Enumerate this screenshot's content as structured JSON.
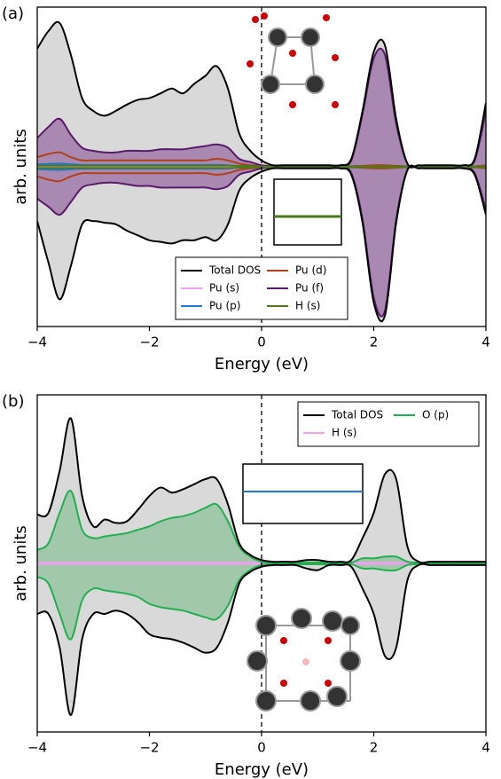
{
  "chart_data": [
    {
      "type": "dos",
      "panel_label": "(a)",
      "xlabel": "Energy (eV)",
      "ylabel": "arb. units",
      "xlim": [
        -4,
        4
      ],
      "ylim": [
        -1,
        1
      ],
      "xticks": [
        {
          "value": -4,
          "label": "−4"
        },
        {
          "value": -2,
          "label": "−2"
        },
        0,
        2,
        4
      ],
      "vline": 0,
      "legend": "lower center",
      "legend_columns": 2,
      "x": [
        -4,
        -3.8,
        -3.6,
        -3.4,
        -3.2,
        -3.0,
        -2.8,
        -2.6,
        -2.4,
        -2.2,
        -2.0,
        -1.8,
        -1.6,
        -1.4,
        -1.2,
        -1.0,
        -0.8,
        -0.6,
        -0.4,
        -0.2,
        0,
        0.2,
        0.4,
        0.6,
        0.8,
        1.0,
        1.2,
        1.4,
        1.6,
        1.8,
        2.0,
        2.2,
        2.4,
        2.6,
        2.8,
        3.0,
        3.2,
        3.4,
        3.6,
        3.8,
        4.0
      ],
      "series": [
        {
          "name": "Total DOS",
          "color": "#000000",
          "fill": "#d9d9d9",
          "values": [
            0.74,
            0.85,
            0.9,
            0.7,
            0.43,
            0.35,
            0.32,
            0.35,
            0.39,
            0.42,
            0.43,
            0.46,
            0.49,
            0.46,
            0.52,
            0.57,
            0.63,
            0.49,
            0.21,
            0.1,
            0.04,
            0.01,
            0.01,
            0.01,
            0.01,
            0.01,
            0.01,
            0.01,
            0.05,
            0.35,
            0.72,
            0.76,
            0.3,
            0.02,
            0.01,
            0.01,
            0.01,
            0.01,
            0.01,
            0.05,
            0.4
          ],
          "values_down": [
            -0.34,
            -0.6,
            -0.83,
            -0.62,
            -0.36,
            -0.34,
            -0.35,
            -0.36,
            -0.4,
            -0.43,
            -0.46,
            -0.47,
            -0.48,
            -0.46,
            -0.46,
            -0.44,
            -0.46,
            -0.36,
            -0.15,
            -0.07,
            -0.03,
            -0.01,
            -0.01,
            -0.01,
            -0.01,
            -0.01,
            -0.01,
            -0.01,
            -0.05,
            -0.35,
            -0.85,
            -0.93,
            -0.35,
            -0.02,
            -0.01,
            -0.01,
            -0.01,
            -0.01,
            -0.01,
            -0.05,
            -0.3
          ]
        },
        {
          "name": "Pu (s)",
          "color": "#f0a0ee",
          "values": [
            0.01,
            0.01,
            0.01,
            0.01,
            0.01,
            0.01,
            0.01,
            0.01,
            0.01,
            0.01,
            0.01,
            0.01,
            0.01,
            0.01,
            0.01,
            0.01,
            0.01,
            0.01,
            0.01,
            0.005,
            0.002,
            0.002,
            0.002,
            0.002,
            0.002,
            0.002,
            0.002,
            0.002,
            0.002,
            0.002,
            0.002,
            0.002,
            0.002,
            0.002,
            0.002,
            0.002,
            0.002,
            0.002,
            0.002,
            0.002,
            0.002
          ],
          "values_down": [
            -0.01,
            -0.01,
            -0.01,
            -0.01,
            -0.01,
            -0.01,
            -0.01,
            -0.01,
            -0.01,
            -0.01,
            -0.01,
            -0.01,
            -0.01,
            -0.01,
            -0.01,
            -0.01,
            -0.01,
            -0.01,
            -0.01,
            -0.005,
            -0.002,
            -0.002,
            -0.002,
            -0.002,
            -0.002,
            -0.002,
            -0.002,
            -0.002,
            -0.002,
            -0.002,
            -0.002,
            -0.002,
            -0.002,
            -0.002,
            -0.002,
            -0.002,
            -0.002,
            -0.002,
            -0.002,
            -0.002,
            -0.002
          ]
        },
        {
          "name": "Pu (p)",
          "color": "#1f78d0",
          "values": [
            0.015,
            0.018,
            0.02,
            0.016,
            0.012,
            0.012,
            0.012,
            0.012,
            0.012,
            0.012,
            0.012,
            0.012,
            0.012,
            0.012,
            0.012,
            0.012,
            0.012,
            0.01,
            0.006,
            0.004,
            0.003,
            0.003,
            0.003,
            0.003,
            0.003,
            0.003,
            0.003,
            0.003,
            0.003,
            0.005,
            0.008,
            0.008,
            0.005,
            0.003,
            0.003,
            0.003,
            0.003,
            0.003,
            0.003,
            0.003,
            0.008
          ],
          "values_down": [
            -0.015,
            -0.018,
            -0.02,
            -0.016,
            -0.012,
            -0.012,
            -0.012,
            -0.012,
            -0.012,
            -0.012,
            -0.012,
            -0.012,
            -0.012,
            -0.012,
            -0.012,
            -0.012,
            -0.012,
            -0.01,
            -0.006,
            -0.004,
            -0.003,
            -0.003,
            -0.003,
            -0.003,
            -0.003,
            -0.003,
            -0.003,
            -0.003,
            -0.003,
            -0.005,
            -0.008,
            -0.008,
            -0.005,
            -0.003,
            -0.003,
            -0.003,
            -0.003,
            -0.003,
            -0.003,
            -0.003,
            -0.008
          ]
        },
        {
          "name": "Pu (d)",
          "color": "#b0401a",
          "values": [
            0.06,
            0.08,
            0.09,
            0.06,
            0.04,
            0.04,
            0.04,
            0.04,
            0.04,
            0.04,
            0.04,
            0.04,
            0.04,
            0.04,
            0.04,
            0.04,
            0.05,
            0.04,
            0.02,
            0.01,
            0.005,
            0.003,
            0.003,
            0.003,
            0.003,
            0.003,
            0.003,
            0.003,
            0.003,
            0.006,
            0.01,
            0.01,
            0.006,
            0.003,
            0.003,
            0.003,
            0.003,
            0.003,
            0.003,
            0.003,
            0.01
          ],
          "values_down": [
            -0.06,
            -0.08,
            -0.09,
            -0.06,
            -0.04,
            -0.04,
            -0.04,
            -0.04,
            -0.04,
            -0.04,
            -0.04,
            -0.04,
            -0.04,
            -0.04,
            -0.04,
            -0.04,
            -0.05,
            -0.04,
            -0.02,
            -0.01,
            -0.005,
            -0.003,
            -0.003,
            -0.003,
            -0.003,
            -0.003,
            -0.003,
            -0.003,
            -0.003,
            -0.006,
            -0.01,
            -0.01,
            -0.006,
            -0.003,
            -0.003,
            -0.003,
            -0.003,
            -0.003,
            -0.003,
            -0.003,
            -0.01
          ]
        },
        {
          "name": "Pu (f)",
          "color": "#5a1a6a",
          "fill": "rgba(110,40,130,0.45)",
          "values": [
            0.18,
            0.25,
            0.3,
            0.2,
            0.12,
            0.1,
            0.09,
            0.09,
            0.1,
            0.1,
            0.1,
            0.11,
            0.11,
            0.11,
            0.12,
            0.13,
            0.14,
            0.12,
            0.05,
            0.03,
            0.01,
            0.005,
            0.005,
            0.005,
            0.005,
            0.005,
            0.005,
            0.005,
            0.04,
            0.33,
            0.68,
            0.7,
            0.27,
            0.02,
            0.005,
            0.005,
            0.005,
            0.005,
            0.005,
            0.04,
            0.35
          ],
          "values_down": [
            -0.2,
            -0.25,
            -0.3,
            -0.22,
            -0.13,
            -0.11,
            -0.1,
            -0.1,
            -0.11,
            -0.12,
            -0.12,
            -0.13,
            -0.13,
            -0.13,
            -0.13,
            -0.13,
            -0.14,
            -0.12,
            -0.05,
            -0.03,
            -0.01,
            -0.005,
            -0.005,
            -0.005,
            -0.005,
            -0.005,
            -0.005,
            -0.005,
            -0.04,
            -0.33,
            -0.82,
            -0.9,
            -0.33,
            -0.02,
            -0.005,
            -0.005,
            -0.005,
            -0.005,
            -0.005,
            -0.04,
            -0.27
          ]
        },
        {
          "name": "H (s)",
          "color": "#4a7a1a",
          "values": [
            0.008,
            0.008,
            0.008,
            0.008,
            0.008,
            0.008,
            0.008,
            0.008,
            0.008,
            0.008,
            0.008,
            0.008,
            0.008,
            0.008,
            0.008,
            0.008,
            0.008,
            0.008,
            0.006,
            0.004,
            0.002,
            0.002,
            0.002,
            0.002,
            0.002,
            0.002,
            0.002,
            0.002,
            0.002,
            0.002,
            0.002,
            0.002,
            0.002,
            0.002,
            0.002,
            0.002,
            0.002,
            0.002,
            0.002,
            0.002,
            0.002
          ],
          "values_down": [
            -0.008,
            -0.008,
            -0.008,
            -0.008,
            -0.008,
            -0.008,
            -0.008,
            -0.008,
            -0.008,
            -0.008,
            -0.008,
            -0.008,
            -0.008,
            -0.008,
            -0.008,
            -0.008,
            -0.008,
            -0.008,
            -0.006,
            -0.004,
            -0.002,
            -0.002,
            -0.002,
            -0.002,
            -0.002,
            -0.002,
            -0.002,
            -0.002,
            -0.002,
            -0.002,
            -0.002,
            -0.002,
            -0.002,
            -0.002,
            -0.002,
            -0.002,
            -0.002,
            -0.002,
            -0.002,
            -0.002,
            -0.002
          ]
        }
      ]
    },
    {
      "type": "dos",
      "panel_label": "(b)",
      "xlabel": "Energy (eV)",
      "ylabel": "arb. units",
      "xlim": [
        -4,
        4
      ],
      "ylim": [
        -1,
        1
      ],
      "xticks": [
        {
          "value": -4,
          "label": "−4"
        },
        {
          "value": -2,
          "label": "−2"
        },
        0,
        2,
        4
      ],
      "vline": 0,
      "legend": "upper right",
      "legend_columns": 2,
      "x": [
        -4,
        -3.8,
        -3.6,
        -3.4,
        -3.2,
        -3.0,
        -2.8,
        -2.6,
        -2.4,
        -2.2,
        -2.0,
        -1.8,
        -1.6,
        -1.4,
        -1.2,
        -1.0,
        -0.8,
        -0.6,
        -0.4,
        -0.2,
        0,
        0.2,
        0.4,
        0.6,
        0.8,
        1.0,
        1.2,
        1.4,
        1.6,
        1.8,
        2.0,
        2.2,
        2.4,
        2.6,
        2.8,
        3.0,
        3.2,
        3.4,
        3.6,
        3.8,
        4.0
      ],
      "series": [
        {
          "name": "Total DOS",
          "color": "#000000",
          "fill": "#d9d9d9",
          "values": [
            0.29,
            0.3,
            0.55,
            0.86,
            0.4,
            0.22,
            0.26,
            0.24,
            0.25,
            0.32,
            0.4,
            0.45,
            0.42,
            0.44,
            0.47,
            0.5,
            0.5,
            0.35,
            0.12,
            0.05,
            0.02,
            0.01,
            0.01,
            0.01,
            0.02,
            0.02,
            0.01,
            0.01,
            0.02,
            0.15,
            0.3,
            0.53,
            0.5,
            0.1,
            0.01,
            0.01,
            0.01,
            0.01,
            0.01,
            0.01,
            0.01
          ],
          "values_down": [
            -0.3,
            -0.3,
            -0.5,
            -0.9,
            -0.45,
            -0.3,
            -0.3,
            -0.28,
            -0.3,
            -0.35,
            -0.42,
            -0.44,
            -0.45,
            -0.47,
            -0.5,
            -0.53,
            -0.5,
            -0.35,
            -0.12,
            -0.05,
            -0.02,
            -0.01,
            -0.01,
            -0.01,
            -0.03,
            -0.04,
            -0.01,
            -0.01,
            -0.02,
            -0.15,
            -0.3,
            -0.55,
            -0.5,
            -0.1,
            -0.01,
            -0.01,
            -0.01,
            -0.01,
            -0.01,
            -0.01,
            -0.01
          ]
        },
        {
          "name": "H (s)",
          "color": "#f0a0ee",
          "values": [
            0.003,
            0.003,
            0.003,
            0.003,
            0.003,
            0.003,
            0.003,
            0.003,
            0.003,
            0.003,
            0.003,
            0.003,
            0.003,
            0.003,
            0.003,
            0.003,
            0.003,
            0.003,
            0.003,
            0.003,
            0.003,
            0.003,
            0.003,
            0.003,
            0.003,
            0.003,
            0.003,
            0.003,
            0.003,
            0.003,
            0.003,
            0.003,
            0.003,
            0.003,
            0.003,
            0.003,
            0.003,
            0.003,
            0.003,
            0.003,
            0.003
          ],
          "values_down": [
            -0.003,
            -0.003,
            -0.003,
            -0.003,
            -0.003,
            -0.003,
            -0.003,
            -0.003,
            -0.003,
            -0.003,
            -0.003,
            -0.003,
            -0.003,
            -0.003,
            -0.003,
            -0.003,
            -0.003,
            -0.003,
            -0.003,
            -0.003,
            -0.003,
            -0.003,
            -0.003,
            -0.003,
            -0.003,
            -0.003,
            -0.003,
            -0.003,
            -0.003,
            -0.003,
            -0.003,
            -0.003,
            -0.003,
            -0.003,
            -0.003,
            -0.003,
            -0.003,
            -0.003,
            -0.003,
            -0.003,
            -0.003
          ]
        },
        {
          "name": "O (p)",
          "color": "#22b04e",
          "fill": "rgba(60,170,90,0.35)",
          "values": [
            0.08,
            0.12,
            0.3,
            0.43,
            0.2,
            0.15,
            0.16,
            0.17,
            0.18,
            0.2,
            0.22,
            0.25,
            0.27,
            0.28,
            0.3,
            0.33,
            0.35,
            0.25,
            0.1,
            0.04,
            0.01,
            0.005,
            0.005,
            0.005,
            0.005,
            0.005,
            0.005,
            0.005,
            0.005,
            0.03,
            0.03,
            0.04,
            0.04,
            0.01,
            0.005,
            0.005,
            0.005,
            0.005,
            0.005,
            0.005,
            0.005
          ],
          "values_down": [
            -0.08,
            -0.12,
            -0.3,
            -0.45,
            -0.22,
            -0.15,
            -0.16,
            -0.17,
            -0.18,
            -0.2,
            -0.24,
            -0.26,
            -0.27,
            -0.28,
            -0.3,
            -0.32,
            -0.33,
            -0.25,
            -0.1,
            -0.04,
            -0.01,
            -0.005,
            -0.005,
            -0.005,
            -0.005,
            -0.005,
            -0.005,
            -0.005,
            -0.005,
            -0.03,
            -0.03,
            -0.04,
            -0.04,
            -0.01,
            -0.005,
            -0.005,
            -0.005,
            -0.005,
            -0.005,
            -0.005,
            -0.005
          ]
        }
      ]
    }
  ]
}
